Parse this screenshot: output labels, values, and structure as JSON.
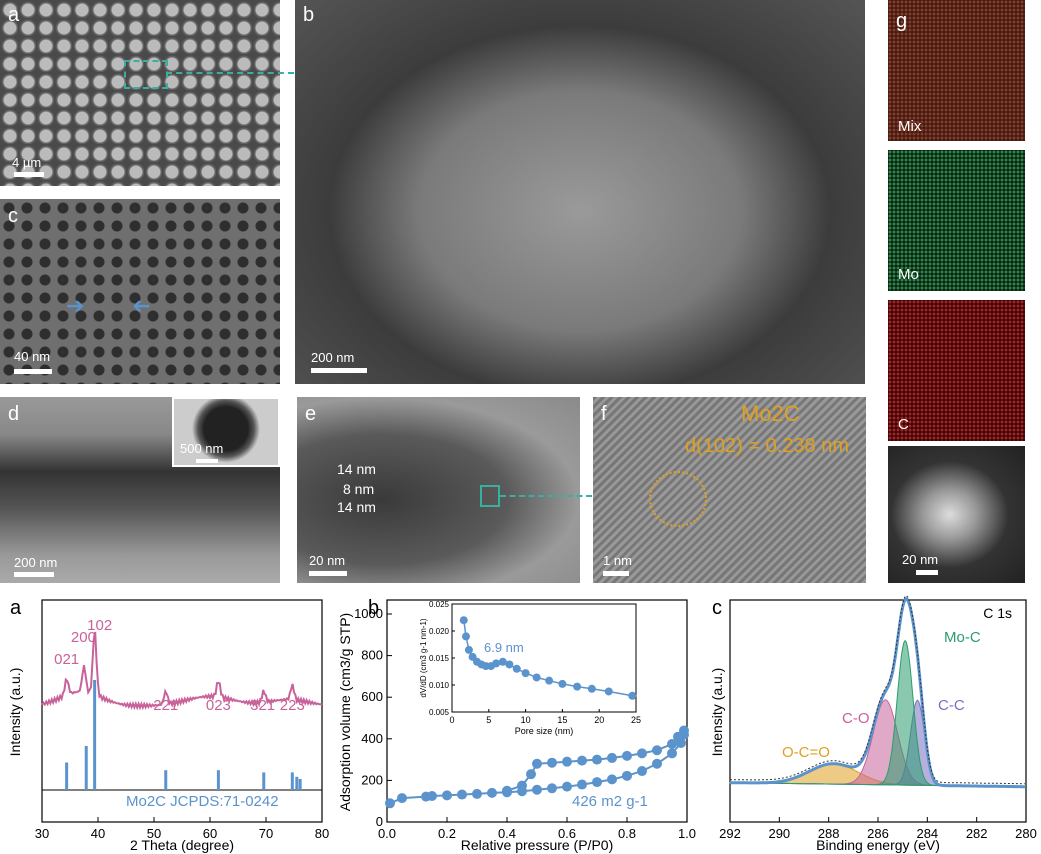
{
  "top": {
    "a": {
      "label": "a",
      "scale": "4 µm"
    },
    "b": {
      "label": "b",
      "scale": "200 nm"
    },
    "c": {
      "label": "c",
      "scale": "40 nm"
    },
    "d": {
      "label": "d",
      "scale": "200 nm",
      "inset_scale": "500 nm"
    },
    "e": {
      "label": "e",
      "scale": "20 nm",
      "dims": [
        "14 nm",
        "8 nm",
        "14 nm"
      ]
    },
    "f": {
      "label": "f",
      "scale": "1 nm",
      "phase": "Mo2C",
      "dspacing": "d(102) = 0.238 nm"
    },
    "g": {
      "label": "g",
      "maps": [
        "Mix",
        "Mo",
        "C"
      ],
      "scale": "20 nm"
    }
  },
  "colors": {
    "pink": "#c8629a",
    "blue": "#5b93cc",
    "green": "#2a9d6e",
    "purple": "#7a6fc4",
    "orange": "#e0a020",
    "teal": "#3aafa0"
  },
  "chart_data": [
    {
      "type": "line",
      "panel": "a",
      "xlabel": "2 Theta (degree)",
      "ylabel": "Intensity (a.u.)",
      "xlim": [
        30,
        80
      ],
      "xticks": [
        30,
        40,
        50,
        60,
        70,
        80
      ],
      "peak_labels": [
        "021",
        "200",
        "102",
        "221",
        "023",
        "321",
        "223"
      ],
      "reference": "Mo2C JCPDS:71-0242",
      "ref_lines": [
        {
          "x": 34.4,
          "h": 0.25
        },
        {
          "x": 37.9,
          "h": 0.4
        },
        {
          "x": 39.4,
          "h": 1.0
        },
        {
          "x": 52.1,
          "h": 0.18
        },
        {
          "x": 61.5,
          "h": 0.18
        },
        {
          "x": 69.6,
          "h": 0.16
        },
        {
          "x": 74.7,
          "h": 0.16
        },
        {
          "x": 75.5,
          "h": 0.12
        },
        {
          "x": 76.1,
          "h": 0.1
        }
      ]
    },
    {
      "type": "scatter",
      "panel": "b",
      "xlabel": "Relative pressure (P/P0)",
      "ylabel": "Adsorption volume (cm3/g STP)",
      "xlim": [
        0,
        1.0
      ],
      "ylim": [
        0,
        1000
      ],
      "xticks": [
        0.0,
        0.2,
        0.4,
        0.6,
        0.8,
        1.0
      ],
      "yticks": [
        0,
        200,
        400,
        600,
        800,
        1000
      ],
      "annotation": "426 m2 g-1",
      "adsorption": [
        [
          0.01,
          90
        ],
        [
          0.05,
          115
        ],
        [
          0.13,
          122
        ],
        [
          0.15,
          125
        ],
        [
          0.2,
          128
        ],
        [
          0.25,
          132
        ],
        [
          0.3,
          135
        ],
        [
          0.35,
          140
        ],
        [
          0.4,
          143
        ],
        [
          0.45,
          148
        ],
        [
          0.5,
          155
        ],
        [
          0.55,
          162
        ],
        [
          0.6,
          170
        ],
        [
          0.65,
          180
        ],
        [
          0.7,
          192
        ],
        [
          0.75,
          205
        ],
        [
          0.8,
          222
        ],
        [
          0.85,
          245
        ],
        [
          0.9,
          280
        ],
        [
          0.95,
          330
        ],
        [
          0.98,
          380
        ],
        [
          0.99,
          420
        ]
      ],
      "desorption": [
        [
          0.99,
          440
        ],
        [
          0.97,
          410
        ],
        [
          0.95,
          375
        ],
        [
          0.9,
          345
        ],
        [
          0.85,
          330
        ],
        [
          0.8,
          318
        ],
        [
          0.75,
          308
        ],
        [
          0.7,
          300
        ],
        [
          0.65,
          295
        ],
        [
          0.6,
          290
        ],
        [
          0.55,
          285
        ],
        [
          0.5,
          280
        ],
        [
          0.48,
          230
        ],
        [
          0.45,
          175
        ],
        [
          0.4,
          150
        ]
      ],
      "inset": {
        "xlabel": "Pore size (nm)",
        "ylabel": "dV/dD (cm3 g-1 nm-1)",
        "xlim": [
          0,
          25
        ],
        "ylim": [
          0.005,
          0.025
        ],
        "xticks": [
          0,
          5,
          10,
          15,
          20,
          25
        ],
        "yticks": [
          0.005,
          0.01,
          0.015,
          0.02,
          0.025
        ],
        "annotation": "6.9 nm",
        "points": [
          [
            1.6,
            0.022
          ],
          [
            1.9,
            0.019
          ],
          [
            2.3,
            0.0165
          ],
          [
            2.8,
            0.0152
          ],
          [
            3.4,
            0.0143
          ],
          [
            4.0,
            0.0138
          ],
          [
            4.6,
            0.0135
          ],
          [
            5.3,
            0.0135
          ],
          [
            6.0,
            0.014
          ],
          [
            6.9,
            0.0143
          ],
          [
            7.8,
            0.0138
          ],
          [
            8.8,
            0.013
          ],
          [
            10.0,
            0.0122
          ],
          [
            11.5,
            0.0114
          ],
          [
            13.2,
            0.0108
          ],
          [
            15.0,
            0.0102
          ],
          [
            17.0,
            0.0097
          ],
          [
            19.0,
            0.0093
          ],
          [
            21.3,
            0.0088
          ],
          [
            24.5,
            0.008
          ]
        ]
      }
    },
    {
      "type": "area",
      "panel": "c",
      "title": "C 1s",
      "xlabel": "Binding energy (eV)",
      "ylabel": "Intensity (a.u.)",
      "xlim": [
        292,
        280
      ],
      "xticks": [
        292,
        290,
        288,
        286,
        284,
        282,
        280
      ],
      "peaks": [
        {
          "name": "Mo-C",
          "center": 284.9,
          "height": 0.85,
          "color": "#2a9d6e"
        },
        {
          "name": "C-C",
          "center": 284.4,
          "height": 0.5,
          "color": "#7a6fc4"
        },
        {
          "name": "C-O",
          "center": 285.7,
          "height": 0.5,
          "color": "#c8629a"
        },
        {
          "name": "O-C=O",
          "center": 287.8,
          "height": 0.12,
          "color": "#e0a020"
        }
      ]
    }
  ]
}
